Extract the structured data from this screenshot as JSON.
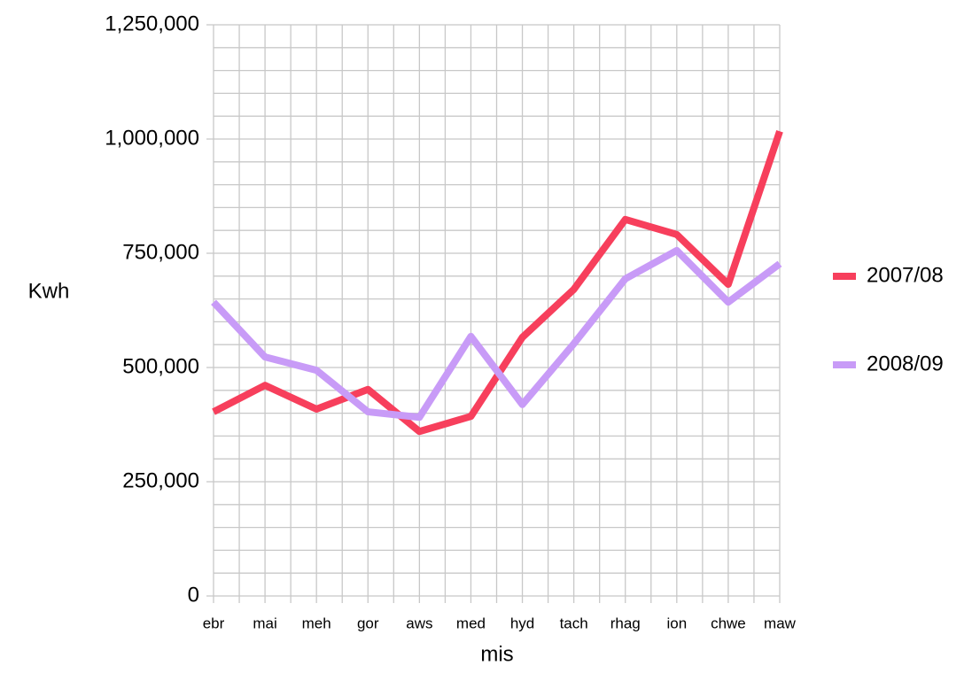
{
  "chart_data": {
    "type": "line",
    "x_label": "mis",
    "y_label": "Kwh",
    "categories": [
      "ebr",
      "mai",
      "meh",
      "gor",
      "aws",
      "med",
      "hyd",
      "tach",
      "rhag",
      "ion",
      "chwe",
      "maw"
    ],
    "series": [
      {
        "name": "2007/08",
        "color": "#f73f5c",
        "values": [
          403000,
          461000,
          409000,
          452000,
          360000,
          393000,
          566000,
          671000,
          824000,
          791000,
          682000,
          1017000
        ]
      },
      {
        "name": "2008/09",
        "color": "#c89bf7",
        "values": [
          643000,
          523000,
          494000,
          403000,
          391000,
          568000,
          419000,
          552000,
          694000,
          756000,
          643000,
          727000
        ]
      }
    ],
    "ylim": [
      0,
      1250000
    ],
    "yticks": [
      0,
      {
        "value": 250000,
        "label": "250,000"
      },
      {
        "value": 500000,
        "label": "500,000"
      },
      {
        "value": 750000,
        "label": "750,000"
      },
      {
        "value": 1000000,
        "label": "1,000,000"
      },
      {
        "value": 1250000,
        "label": "1,250,000"
      }
    ],
    "yminorticks": [
      50000,
      100000,
      150000,
      200000,
      300000,
      350000,
      400000,
      450000,
      550000,
      600000,
      650000,
      700000,
      800000,
      850000,
      900000,
      950000,
      1050000,
      1100000,
      1150000,
      1200000
    ],
    "grid": true,
    "legend": "right"
  }
}
